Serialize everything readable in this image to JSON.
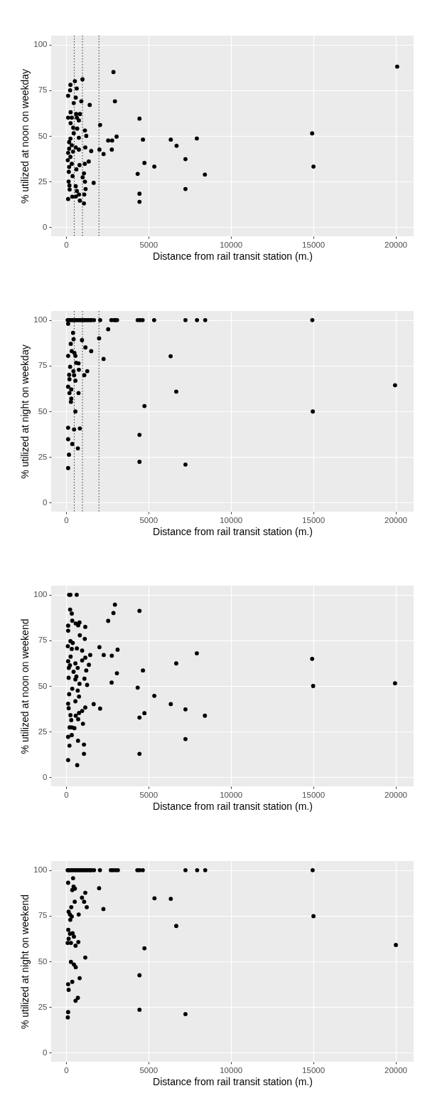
{
  "chart_data": [
    {
      "type": "scatter",
      "xlabel": "Distance from rail transit station (m.)",
      "ylabel": "% utilized at noon on weekday",
      "xlim": [
        -900,
        21100
      ],
      "ylim": [
        -5,
        105
      ],
      "xticks": [
        0,
        5000,
        10000,
        15000,
        20000
      ],
      "yticks": [
        0,
        25,
        50,
        75,
        100
      ],
      "grid": true,
      "marker": "circle",
      "ref_lines": [
        {
          "axis": "x",
          "value": 500,
          "color": "#333333",
          "line_style": "dotted"
        },
        {
          "axis": "x",
          "value": 1000,
          "color": "#333333",
          "line_style": "dotted"
        },
        {
          "axis": "x",
          "value": 2000,
          "color": "#333333",
          "line_style": "dotted"
        }
      ],
      "series": [
        {
          "color": "#000000",
          "x": [
            20100,
            2880,
            1000,
            540,
            270,
            650,
            250,
            130,
            590,
            470,
            930,
            2970,
            1440,
            280,
            620,
            850,
            130,
            350,
            660,
            780,
            4460,
            280,
            2070,
            680,
            440,
            1150,
            470,
            1230,
            780,
            270,
            3070,
            14940,
            2560,
            2800,
            4670,
            6360,
            7940,
            6710,
            1170,
            1530,
            2030,
            2780,
            2280,
            190,
            350,
            590,
            780,
            190,
            130,
            430,
            270,
            110,
            1380,
            1140,
            350,
            4760,
            5360,
            7250,
            15020,
            820,
            190,
            630,
            170,
            1090,
            4350,
            8430,
            400,
            1010,
            1150,
            1680,
            160,
            210,
            590,
            7250,
            220,
            1190,
            660,
            790,
            1110,
            600,
            380,
            4460,
            130,
            840,
            1090,
            4460
          ],
          "values": [
            88,
            85,
            81,
            80,
            78,
            76,
            75,
            72,
            71,
            68,
            69,
            69,
            67,
            63,
            62,
            62,
            60,
            60,
            60,
            58.5,
            59.5,
            57,
            56,
            54,
            54.5,
            53,
            51.5,
            50,
            49,
            48.5,
            49.6,
            51.4,
            47.5,
            47.5,
            48,
            48,
            48.6,
            44.6,
            43.7,
            41.7,
            42.5,
            42.5,
            40.1,
            46.6,
            44.9,
            43.7,
            42.5,
            43,
            40.7,
            41.4,
            38.5,
            36.7,
            36,
            34.7,
            34.7,
            35.2,
            33.2,
            37.3,
            33.2,
            34,
            33,
            31.7,
            30.3,
            29.5,
            29.2,
            28.8,
            28,
            27.3,
            24.9,
            24.3,
            25,
            22.8,
            22.4,
            20.9,
            20.6,
            20.9,
            19.8,
            17.9,
            17.9,
            16.8,
            16.7,
            18.3,
            15.4,
            14.5,
            13,
            13.9
          ]
        }
      ]
    },
    {
      "type": "scatter",
      "xlabel": "Distance from rail transit station (m.)",
      "ylabel": "% utilized at night on weekday",
      "xlim": [
        -900,
        21100
      ],
      "ylim": [
        -5,
        105
      ],
      "xticks": [
        0,
        5000,
        10000,
        15000,
        20000
      ],
      "yticks": [
        0,
        25,
        50,
        75,
        100
      ],
      "grid": true,
      "marker": "circle",
      "ref_lines": [
        {
          "axis": "x",
          "value": 500,
          "color": "#333333",
          "line_style": "dotted"
        },
        {
          "axis": "x",
          "value": 1000,
          "color": "#333333",
          "line_style": "dotted"
        },
        {
          "axis": "x",
          "value": 2000,
          "color": "#333333",
          "line_style": "dotted"
        }
      ],
      "series": [
        {
          "color": "#000000",
          "x": [
            100,
            150,
            250,
            350,
            450,
            550,
            650,
            750,
            850,
            950,
            1050,
            1150,
            1250,
            1350,
            1450,
            1550,
            1700,
            2070,
            2750,
            2900,
            3000,
            3100,
            4350,
            4500,
            4650,
            5350,
            7250,
            7950,
            8450,
            14950,
            130,
            430,
            460,
            970,
            2010,
            2560,
            290,
            1180,
            1530,
            350,
            510,
            130,
            570,
            6350,
            2280,
            610,
            760,
            250,
            450,
            1290,
            780,
            190,
            490,
            1110,
            210,
            570,
            130,
            320,
            210,
            760,
            320,
            300,
            6690,
            19970,
            570,
            4760,
            14980,
            130,
            490,
            840,
            4460,
            130,
            380,
            720,
            180,
            4460,
            7250,
            130
          ],
          "values": [
            100,
            100,
            100,
            100,
            100,
            100,
            100,
            100,
            100,
            100,
            100,
            100,
            100,
            100,
            100,
            100,
            100,
            100,
            100,
            100,
            100,
            100,
            100,
            100,
            100,
            100,
            100,
            100,
            100,
            100,
            98,
            93,
            89.5,
            89,
            90,
            95,
            87,
            85,
            83,
            83,
            82,
            80.4,
            80.4,
            80.2,
            78.7,
            76.6,
            76.3,
            74.4,
            72,
            72,
            72.8,
            70,
            69.8,
            69.8,
            67.6,
            66.8,
            63.5,
            62,
            60,
            60,
            57,
            55.2,
            60.8,
            64.3,
            49.9,
            52.9,
            49.9,
            41,
            40.1,
            40.6,
            37.1,
            34.7,
            32.1,
            29.7,
            26.2,
            22.3,
            20.8,
            18.9
          ]
        }
      ]
    },
    {
      "type": "scatter",
      "xlabel": "Distance from rail transit station (m.)",
      "ylabel": "% utilized at noon on weekend",
      "xlim": [
        -900,
        21100
      ],
      "ylim": [
        -5,
        105
      ],
      "xticks": [
        0,
        5000,
        10000,
        15000,
        20000
      ],
      "yticks": [
        0,
        25,
        50,
        75,
        100
      ],
      "grid": true,
      "marker": "circle",
      "series": [
        {
          "color": "#000000",
          "x": [
            190,
            270,
            650,
            2970,
            4460,
            250,
            350,
            2880,
            2560,
            380,
            590,
            820,
            740,
            130,
            1170,
            130,
            840,
            1140,
            270,
            410,
            110,
            2030,
            660,
            350,
            980,
            3130,
            7940,
            1470,
            2290,
            2780,
            280,
            1170,
            14940,
            1390,
            130,
            570,
            6690,
            240,
            980,
            710,
            170,
            1230,
            4670,
            460,
            3090,
            630,
            1120,
            160,
            570,
            820,
            1280,
            2770,
            19970,
            15000,
            4350,
            380,
            710,
            190,
            5360,
            790,
            570,
            1680,
            6360,
            130,
            1170,
            2070,
            7250,
            160,
            980,
            790,
            4760,
            8430,
            270,
            590,
            4460,
            740,
            320,
            1030,
            220,
            510,
            350,
            130,
            350,
            7250,
            730,
            210,
            1090,
            1090,
            4460,
            130,
            680
          ],
          "values": [
            100,
            100,
            100,
            94.6,
            91.2,
            91.9,
            89.7,
            90,
            85.7,
            85.8,
            84.3,
            84.8,
            83.3,
            83.1,
            82.4,
            80.3,
            77.8,
            75.8,
            74.6,
            73.6,
            71.8,
            71.3,
            70.6,
            70.3,
            69.4,
            69.9,
            67.9,
            67,
            67,
            66.6,
            66.1,
            65.5,
            64.9,
            61.6,
            63.6,
            62.4,
            62.4,
            61.3,
            64,
            59.9,
            59.9,
            58.5,
            58.5,
            57.8,
            57,
            55.2,
            54,
            54.5,
            53.6,
            51.2,
            50.6,
            51.9,
            51.5,
            50,
            49.1,
            48.5,
            47.5,
            45.5,
            44.6,
            44.2,
            41.6,
            40.1,
            40.1,
            40.3,
            38.2,
            37.6,
            37.2,
            37.8,
            36.3,
            35.2,
            35.1,
            33.7,
            34,
            33.7,
            32.7,
            31.8,
            31.3,
            29.3,
            27.3,
            26.9,
            27.3,
            22.1,
            23.1,
            20.9,
            20,
            17.3,
            17.9,
            12.8,
            12.8,
            9.4,
            6.6
          ]
        }
      ]
    },
    {
      "type": "scatter",
      "xlabel": "Distance from rail transit station (m.)",
      "ylabel": "% utilized at night on weekend",
      "xlim": [
        -900,
        21100
      ],
      "ylim": [
        -5,
        105
      ],
      "xticks": [
        0,
        5000,
        10000,
        15000,
        20000
      ],
      "yticks": [
        0,
        25,
        50,
        75,
        100
      ],
      "grid": true,
      "marker": "circle",
      "series": [
        {
          "color": "#000000",
          "x": [
            100,
            150,
            250,
            350,
            450,
            550,
            650,
            750,
            850,
            950,
            1050,
            1150,
            1250,
            1350,
            1450,
            1550,
            1700,
            2060,
            2720,
            2850,
            3000,
            3150,
            4330,
            4470,
            4660,
            7250,
            7960,
            8450,
            14970,
            430,
            130,
            460,
            540,
            380,
            2010,
            1170,
            970,
            5370,
            6360,
            1100,
            530,
            1260,
            2270,
            320,
            160,
            770,
            240,
            350,
            260,
            15020,
            6690,
            140,
            400,
            240,
            480,
            160,
            300,
            100,
            750,
            580,
            4760,
            20020,
            1170,
            300,
            480,
            590,
            4460,
            830,
            380,
            130,
            160,
            720,
            580,
            130,
            110,
            4460,
            7250
          ],
          "values": [
            100,
            100,
            100,
            100,
            100,
            100,
            100,
            100,
            100,
            100,
            100,
            100,
            100,
            100,
            100,
            100,
            100,
            100,
            100,
            100,
            100,
            100,
            100,
            100,
            100,
            100,
            100,
            100,
            100,
            95.6,
            93.1,
            91,
            89.9,
            89.1,
            90.1,
            87.6,
            84.9,
            84.6,
            84.3,
            82.7,
            82.7,
            79.7,
            78.7,
            79.7,
            77.2,
            75.7,
            75.7,
            74.6,
            72.8,
            74.8,
            69.4,
            67.3,
            65.4,
            65.1,
            63.6,
            62.4,
            60.1,
            60.1,
            60.6,
            58.6,
            57.2,
            59,
            52.1,
            49.7,
            48.3,
            46.8,
            42.4,
            40.8,
            38.8,
            37.5,
            34.4,
            30,
            28.4,
            22.2,
            19.3,
            23.5,
            21.1
          ]
        }
      ]
    }
  ]
}
